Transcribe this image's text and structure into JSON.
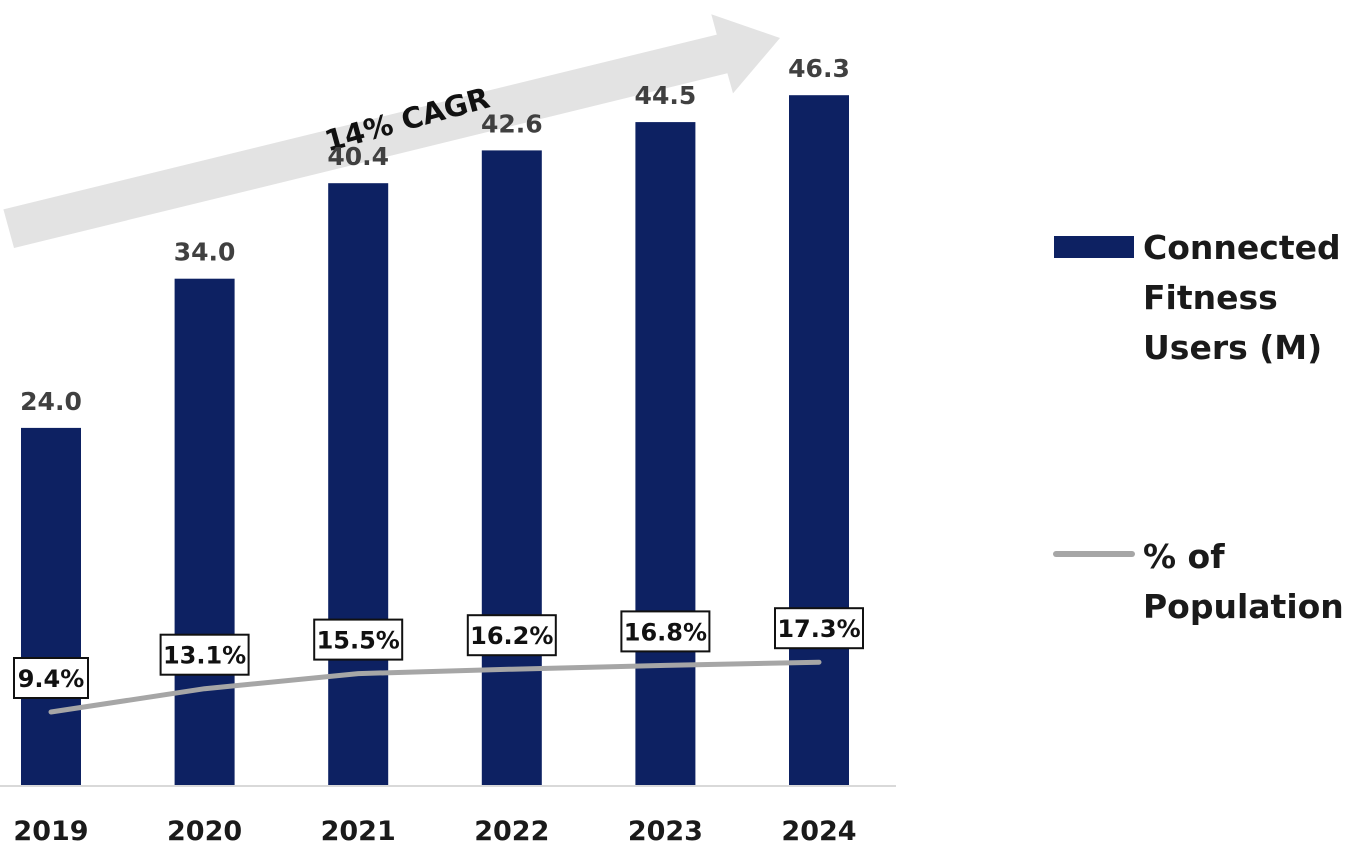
{
  "chart_data": {
    "type": "bar",
    "categories": [
      "2019",
      "2020",
      "2021",
      "2022",
      "2023",
      "2024"
    ],
    "series": [
      {
        "name": "Connected Fitness Users (M)",
        "chart_type": "bar",
        "color": "#0d2162",
        "values": [
          24.0,
          34.0,
          40.4,
          42.6,
          44.5,
          46.3
        ],
        "labels": [
          "24.0",
          "34.0",
          "40.4",
          "42.6",
          "44.5",
          "46.3"
        ]
      },
      {
        "name": "% of Population",
        "chart_type": "line",
        "color": "#a6a6a6",
        "values": [
          9.4,
          13.1,
          15.5,
          16.2,
          16.8,
          17.3
        ],
        "labels": [
          "9.4%",
          "13.1%",
          "15.5%",
          "16.2%",
          "16.8%",
          "17.3%"
        ]
      }
    ],
    "legend": {
      "placement": "right",
      "items": [
        {
          "label_lines": [
            "Connected",
            "Fitness",
            "Users (M)"
          ],
          "symbol": "bar",
          "color": "#0d2162"
        },
        {
          "label_lines": [
            "% of",
            "Population"
          ],
          "symbol": "line",
          "color": "#a6a6a6"
        }
      ]
    },
    "annotation": {
      "text": "14% CAGR",
      "shape": "arrow",
      "color": "#e3e3e3"
    },
    "axis_line_color": "#d9d9d9",
    "ylim": [
      0,
      50
    ],
    "grid": false,
    "title": "",
    "xlabel": "",
    "ylabel": ""
  }
}
